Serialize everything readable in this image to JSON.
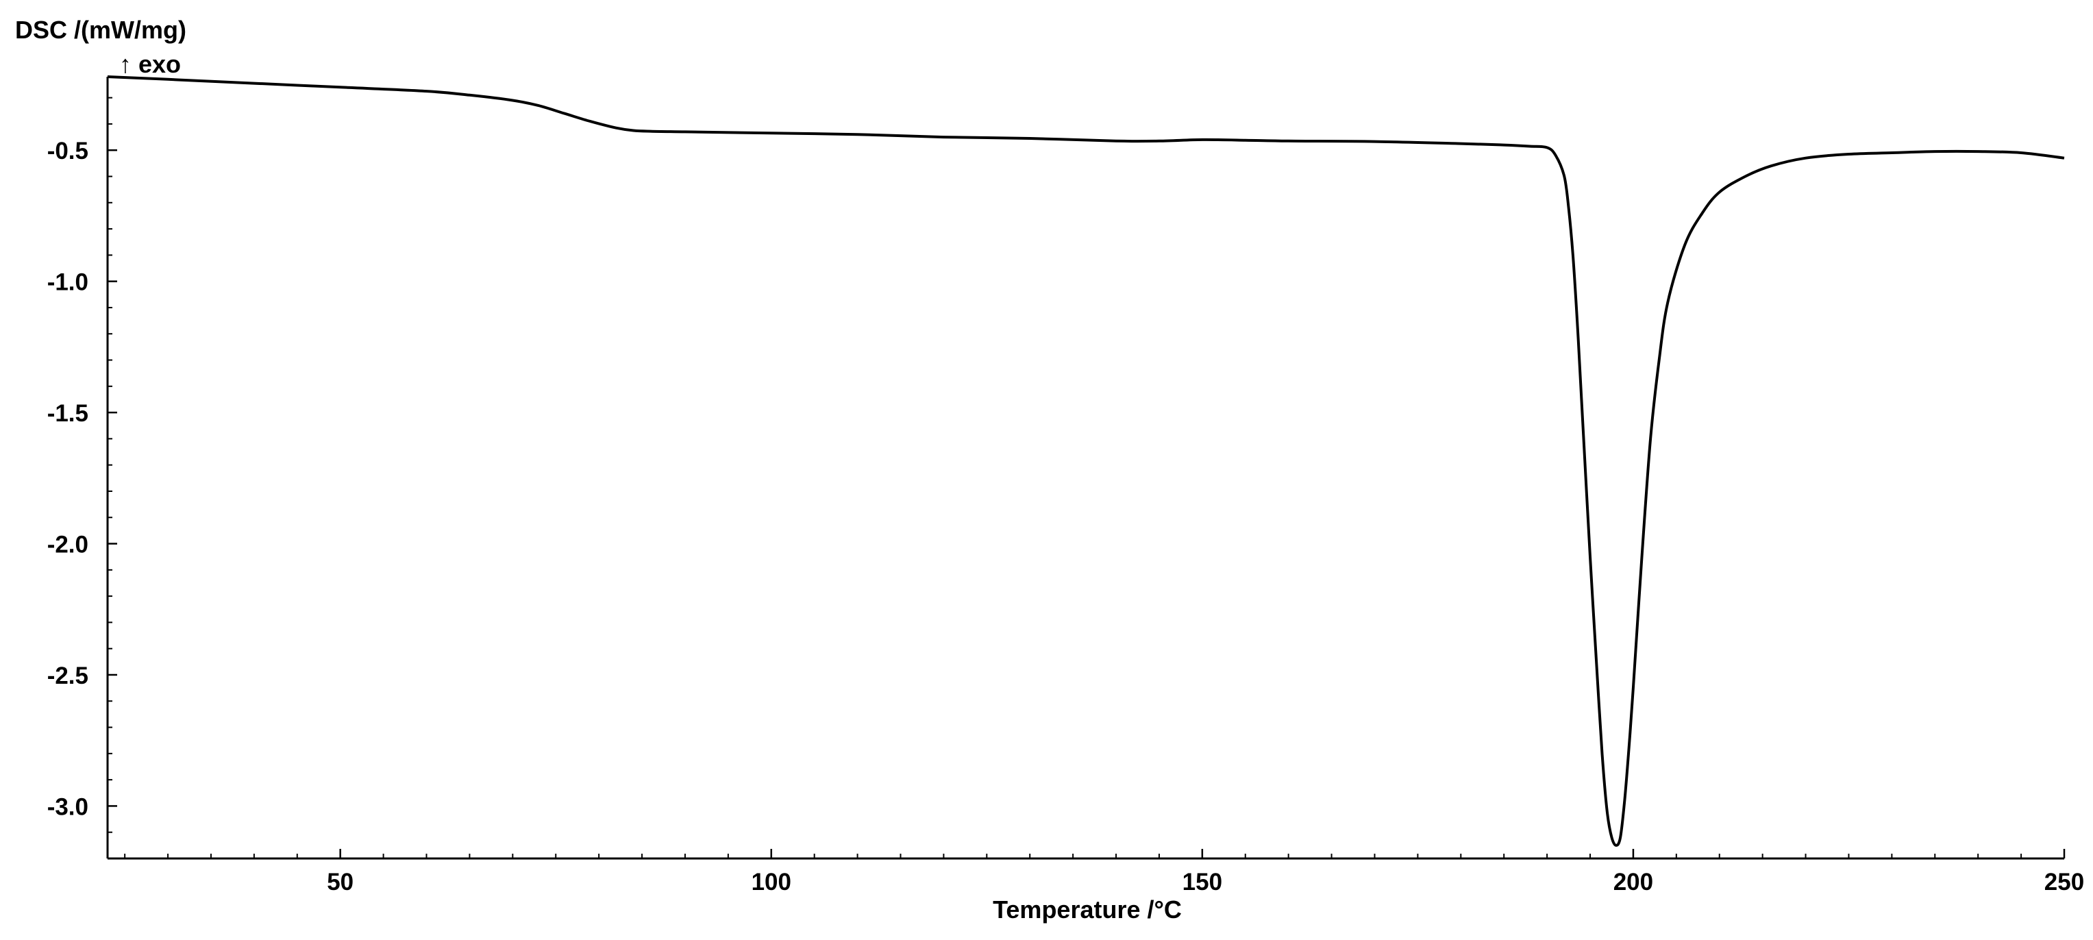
{
  "chart_data": {
    "type": "line",
    "title": "",
    "xlabel": "Temperature /°C",
    "ylabel": "DSC /(mW/mg)",
    "direction_note": "↑ exo",
    "xlim": [
      23,
      250
    ],
    "ylim": [
      -3.2,
      -0.22
    ],
    "x_ticks": [
      50,
      100,
      150,
      200,
      250
    ],
    "y_ticks": [
      -0.5,
      -1.0,
      -1.5,
      -2.0,
      -2.5,
      -3.0
    ],
    "x_tick_labels": [
      "50",
      "100",
      "150",
      "200",
      "250"
    ],
    "y_tick_labels": [
      "-0.5",
      "-1.0",
      "-1.5",
      "-2.0",
      "-2.5",
      "-3.0"
    ],
    "grid": false,
    "line_color": "#000000",
    "series": [
      {
        "x": [
          23,
          30,
          40,
          50,
          60,
          65,
          70,
          73,
          76,
          79,
          82,
          84,
          86,
          90,
          100,
          110,
          120,
          130,
          140,
          145,
          150,
          155,
          160,
          170,
          180,
          185,
          188,
          190,
          191,
          192,
          192.5,
          193,
          193.5,
          194,
          195,
          196,
          196.5,
          197,
          197.5,
          198,
          198.5,
          199,
          199.5,
          200,
          201,
          202,
          203,
          204,
          206,
          208,
          210,
          213,
          216,
          220,
          225,
          230,
          235,
          240,
          245,
          250
        ],
        "y": [
          -0.22,
          -0.23,
          -0.245,
          -0.26,
          -0.275,
          -0.29,
          -0.31,
          -0.33,
          -0.36,
          -0.39,
          -0.415,
          -0.425,
          -0.428,
          -0.43,
          -0.435,
          -0.44,
          -0.45,
          -0.455,
          -0.465,
          -0.465,
          -0.46,
          -0.462,
          -0.465,
          -0.467,
          -0.475,
          -0.48,
          -0.485,
          -0.49,
          -0.52,
          -0.6,
          -0.72,
          -0.9,
          -1.15,
          -1.45,
          -2.05,
          -2.6,
          -2.85,
          -3.03,
          -3.12,
          -3.15,
          -3.12,
          -2.98,
          -2.78,
          -2.55,
          -2.05,
          -1.6,
          -1.3,
          -1.08,
          -0.86,
          -0.74,
          -0.66,
          -0.6,
          -0.56,
          -0.53,
          -0.515,
          -0.51,
          -0.505,
          -0.505,
          -0.51,
          -0.53
        ]
      }
    ]
  }
}
